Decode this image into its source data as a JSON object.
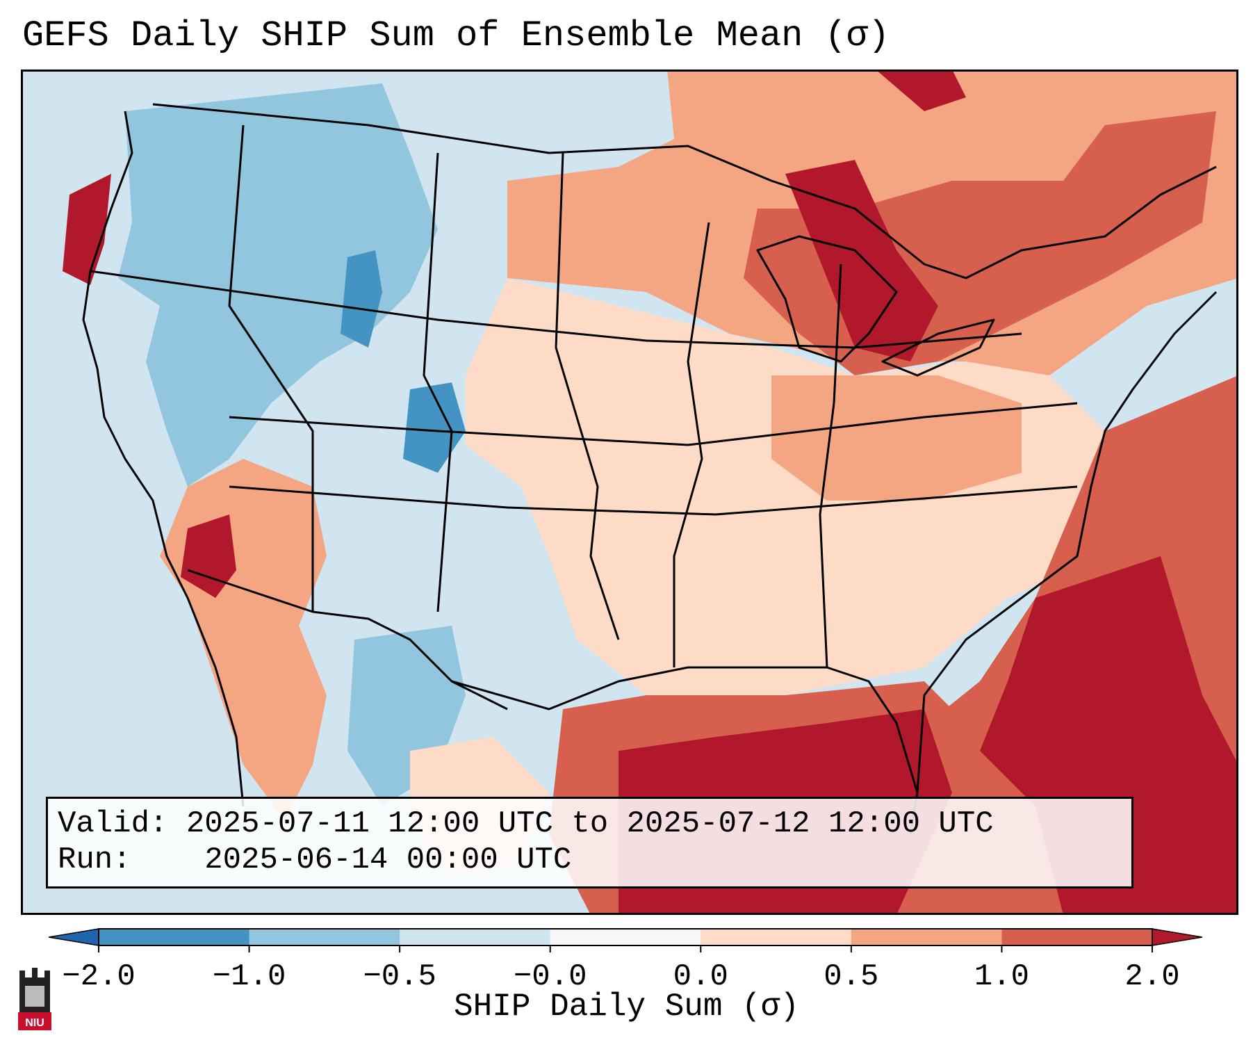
{
  "title": "GEFS Daily SHIP Sum of Ensemble Mean (σ)",
  "info_box": {
    "valid_label": "Valid:",
    "valid_value": "2025-07-11 12:00 UTC to 2025-07-12 12:00 UTC",
    "run_label": "Run:",
    "run_value": "2025-06-14 00:00 UTC"
  },
  "colorbar": {
    "label": "SHIP Daily Sum (σ)",
    "ticks": [
      "−2.0",
      "−1.0",
      "−0.5",
      "−0.0",
      "0.0",
      "0.5",
      "1.0",
      "2.0"
    ],
    "bins": [
      {
        "range": "< -2.0",
        "color": "#2166ac"
      },
      {
        "range": "-2.0 to -1.0",
        "color": "#4393c3"
      },
      {
        "range": "-1.0 to -0.5",
        "color": "#92c5de"
      },
      {
        "range": "-0.5 to -0.0",
        "color": "#d1e5f0"
      },
      {
        "range": "-0.0 to 0.0",
        "color": "#f7f7f7"
      },
      {
        "range": "0.0 to 0.5",
        "color": "#fddbc7"
      },
      {
        "range": "0.5 to 1.0",
        "color": "#f4a582"
      },
      {
        "range": "1.0 to 2.0",
        "color": "#d6604d"
      },
      {
        "range": "> 2.0",
        "color": "#b2182b"
      }
    ]
  },
  "colors": {
    "strong_negative": "#4393c3",
    "negative": "#92c5de",
    "weak_negative": "#d1e5f0",
    "neutral": "#f7f7f7",
    "weak_positive": "#fddbc7",
    "positive": "#f4a582",
    "strong_positive": "#d6604d",
    "extreme_positive": "#b2182b"
  },
  "logo": {
    "text": "NIU",
    "icon": "university-building-icon"
  }
}
